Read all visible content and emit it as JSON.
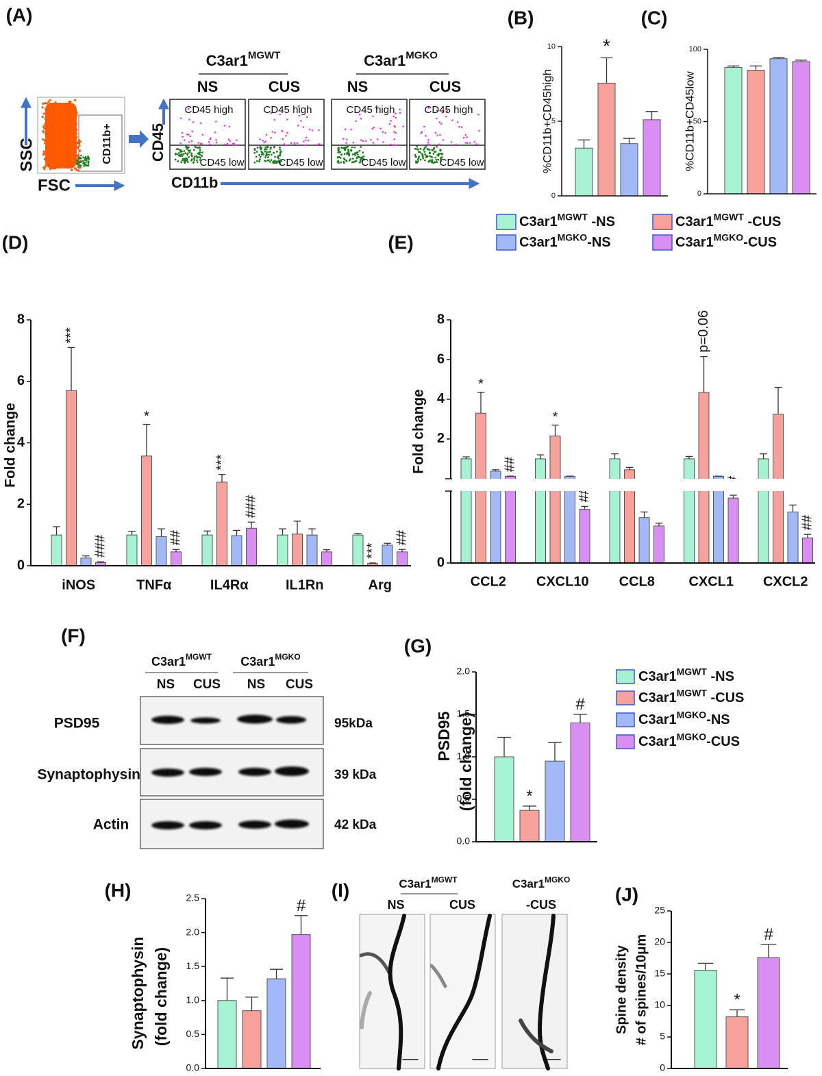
{
  "groups": [
    {
      "base": "C3ar1",
      "sup": "MGWT",
      "conditions": [
        "NS",
        "CUS"
      ]
    },
    {
      "base": "C3ar1",
      "sup": "MGKO",
      "conditions": [
        "NS",
        "CUS"
      ]
    }
  ],
  "flow": {
    "panel": "(A)",
    "ssc": "SSC",
    "fsc": "FSC",
    "gate": "CD11b+",
    "cd45": "CD45",
    "cd11b": "CD11b",
    "high": "CD45 high",
    "low": "CD45 low"
  },
  "blot": {
    "panel": "(F)",
    "proteins": [
      "PSD95",
      "Synaptophysin",
      "Actin"
    ],
    "sizes": [
      "95kDa",
      "39 kDa",
      "42 kDa"
    ]
  },
  "micrographs": {
    "panel": "(I)",
    "ko_condition": "-CUS"
  },
  "chart_data": [
    {
      "type": "bar",
      "panel": "(B)",
      "ylabel": "%CD11b+CD45high",
      "ylim": [
        0,
        10
      ],
      "yticks": [
        0,
        5,
        10
      ],
      "legend": "bottom",
      "series": [
        {
          "name": {
            "base": "C3ar1",
            "sup": "MGWT",
            "suffix": " -NS"
          },
          "color": "#a6f2d2",
          "values": [
            3.2
          ],
          "errors": [
            0.55
          ]
        },
        {
          "name": {
            "base": "C3ar1",
            "sup": "MGWT",
            "suffix": " -CUS"
          },
          "color": "#f6a19b",
          "values": [
            7.55
          ],
          "errors": [
            1.7
          ],
          "annotations": [
            "*"
          ]
        },
        {
          "name": {
            "base": "C3ar1",
            "sup": "MGKO",
            "suffix": "-NS"
          },
          "color": "#a3b8f7",
          "values": [
            3.5
          ],
          "errors": [
            0.35
          ]
        },
        {
          "name": {
            "base": "C3ar1",
            "sup": "MGKO",
            "suffix": "-CUS"
          },
          "color": "#d98ff2",
          "values": [
            5.1
          ],
          "errors": [
            0.55
          ]
        }
      ]
    },
    {
      "type": "bar",
      "panel": "(C)",
      "ylabel": "%CD11b+CD45low",
      "ylim": [
        0,
        100
      ],
      "yticks": [
        0,
        50,
        100
      ],
      "series": [
        {
          "color": "#a6f2d2",
          "values": [
            87.5
          ],
          "errors": [
            1
          ]
        },
        {
          "color": "#f6a19b",
          "values": [
            85.5
          ],
          "errors": [
            3
          ]
        },
        {
          "color": "#a3b8f7",
          "values": [
            93.5
          ],
          "errors": [
            0.8
          ]
        },
        {
          "color": "#d98ff2",
          "values": [
            91.5
          ],
          "errors": [
            1
          ]
        }
      ]
    },
    {
      "type": "bar",
      "panel": "(D)",
      "ylabel": "Fold change",
      "categories": [
        "iNOS",
        "TNFα",
        "IL4Rα",
        "IL1Rn",
        "Arg"
      ],
      "ylim": [
        0,
        8
      ],
      "yticks": [
        0,
        2,
        4,
        6,
        8
      ],
      "series": [
        {
          "color": "#a6f2d2",
          "values": [
            1,
            1,
            1,
            1,
            1
          ],
          "errors": [
            0.27,
            0.12,
            0.13,
            0.2,
            0.05
          ]
        },
        {
          "color": "#f6a19b",
          "values": [
            5.7,
            3.57,
            2.72,
            1.03,
            0.07
          ],
          "errors": [
            1.4,
            1.03,
            0.25,
            0.42,
            0.02
          ],
          "annotations": [
            "***",
            "*",
            "***",
            null,
            "***"
          ]
        },
        {
          "color": "#a3b8f7",
          "values": [
            0.25,
            0.95,
            0.98,
            1.0,
            0.67
          ],
          "errors": [
            0.07,
            0.25,
            0.17,
            0.2,
            0.06
          ]
        },
        {
          "color": "#d98ff2",
          "values": [
            0.1,
            0.45,
            1.22,
            0.45,
            0.45
          ],
          "errors": [
            0.03,
            0.08,
            0.2,
            0.07,
            0.08
          ],
          "annotations": [
            "###",
            "##",
            "###",
            null,
            "##"
          ]
        }
      ]
    },
    {
      "type": "broken-bar",
      "panel": "(E)",
      "ylabel": "Fold change",
      "categories": [
        "CCL2",
        "CXCL10",
        "CCL8",
        "CXCL1",
        "CXCL2"
      ],
      "ylim": [
        0.1,
        8
      ],
      "yticks": [
        2,
        4,
        6,
        8
      ],
      "ylim_lower": [
        0,
        0.1
      ],
      "yticks_lower": [
        0
      ],
      "series": [
        {
          "color": "#a6f2d2",
          "values": [
            1,
            1,
            1,
            1,
            1
          ],
          "errors": [
            0.1,
            0.2,
            0.25,
            0.12,
            0.25
          ]
        },
        {
          "color": "#f6a19b",
          "values": [
            3.3,
            2.15,
            0.45,
            4.35,
            3.25
          ],
          "errors": [
            1.05,
            0.55,
            0.12,
            1.8,
            1.35
          ],
          "annotations": [
            "*",
            "*",
            null,
            "p=0.06",
            null
          ]
        },
        {
          "color": "#a3b8f7",
          "values": [
            0.38,
            0.12,
            0.065,
            0.12,
            0.073
          ],
          "errors": [
            0.07,
            0.01,
            0.008,
            0.01,
            0.01
          ]
        },
        {
          "color": "#d98ff2",
          "values": [
            0.12,
            0.077,
            0.053,
            0.093,
            0.036
          ],
          "errors": [
            0.01,
            0.004,
            0.004,
            0.004,
            0.005
          ],
          "annotations": [
            "##",
            "###",
            null,
            "##",
            "##"
          ]
        }
      ]
    },
    {
      "type": "bar",
      "panel": "(G)",
      "ylabel": [
        "PSD95",
        "(fold change)"
      ],
      "ylim": [
        0,
        2
      ],
      "yticks": [
        {
          "value": 0,
          "label": "0.0"
        },
        0.5,
        {
          "value": 1,
          "label": "1.0"
        },
        1.5,
        {
          "value": 2,
          "label": "2.0"
        }
      ],
      "legend": "right",
      "series": [
        {
          "name": {
            "base": "C3ar1",
            "sup": "MGWT",
            "suffix": " -NS"
          },
          "color": "#a6f2d2",
          "values": [
            1.0
          ],
          "errors": [
            0.23
          ]
        },
        {
          "name": {
            "base": "C3ar1",
            "sup": "MGWT",
            "suffix": " -CUS"
          },
          "color": "#f6a19b",
          "values": [
            0.37
          ],
          "errors": [
            0.05
          ],
          "annotations": [
            "*"
          ]
        },
        {
          "name": {
            "base": "C3ar1",
            "sup": "MGKO",
            "suffix": "-NS"
          },
          "color": "#a3b8f7",
          "values": [
            0.95
          ],
          "errors": [
            0.22
          ]
        },
        {
          "name": {
            "base": "C3ar1",
            "sup": "MGKO",
            "suffix": "-CUS"
          },
          "color": "#d98ff2",
          "values": [
            1.4
          ],
          "errors": [
            0.1
          ],
          "annotations": [
            "#"
          ]
        }
      ]
    },
    {
      "type": "bar",
      "panel": "(H)",
      "ylabel": [
        "Synaptophysin",
        "(fold change)"
      ],
      "ylim": [
        0,
        2.5
      ],
      "yticks": [
        {
          "value": 0,
          "label": "0.0"
        },
        0.5,
        {
          "value": 1,
          "label": "1.0"
        },
        1.5,
        {
          "value": 2,
          "label": "2.0"
        },
        2.5
      ],
      "series": [
        {
          "color": "#a6f2d2",
          "values": [
            1.0
          ],
          "errors": [
            0.33
          ]
        },
        {
          "color": "#f6a19b",
          "values": [
            0.85
          ],
          "errors": [
            0.2
          ]
        },
        {
          "color": "#a3b8f7",
          "values": [
            1.32
          ],
          "errors": [
            0.14
          ]
        },
        {
          "color": "#d98ff2",
          "values": [
            1.97
          ],
          "errors": [
            0.28
          ],
          "annotations": [
            "#"
          ]
        }
      ]
    },
    {
      "type": "bar",
      "panel": "(J)",
      "ylabel": [
        "Spine density",
        "# of spines/10μm"
      ],
      "ylim": [
        0,
        25
      ],
      "yticks": [
        0,
        5,
        10,
        15,
        20,
        25
      ],
      "series": [
        {
          "color": "#a6f2d2",
          "values": [
            15.6
          ],
          "errors": [
            1.1
          ]
        },
        {
          "color": "#f6a19b",
          "values": [
            8.2
          ],
          "errors": [
            1.1
          ],
          "annotations": [
            "*"
          ]
        },
        {
          "color": "#d98ff2",
          "values": [
            17.6
          ],
          "errors": [
            2.1
          ],
          "annotations": [
            "#"
          ]
        }
      ]
    }
  ]
}
